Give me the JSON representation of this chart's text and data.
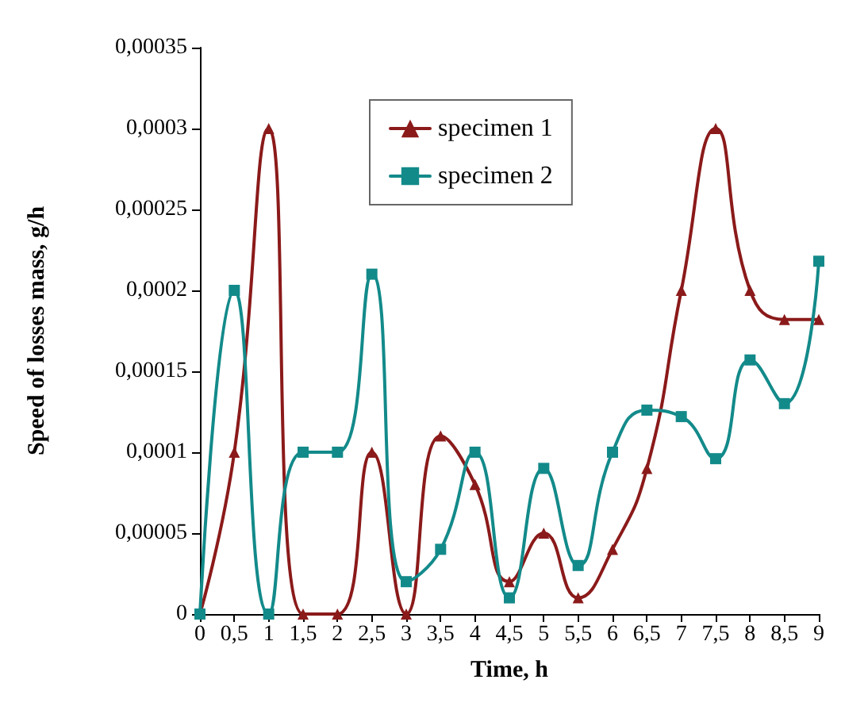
{
  "chart_data": {
    "type": "line",
    "xlabel": "Time, h",
    "ylabel": "Speed of losses mass, g/h",
    "categories": [
      "0",
      "0,5",
      "1",
      "1,5",
      "2",
      "2,5",
      "3",
      "3,5",
      "4",
      "4,5",
      "5",
      "5,5",
      "6",
      "6,5",
      "7",
      "7,5",
      "8",
      "8,5",
      "9"
    ],
    "series": [
      {
        "name": "specimen 1",
        "color": "#8b1a1a",
        "marker": "triangle",
        "values": [
          0,
          0.0001,
          0.0003,
          0,
          0,
          0.0001,
          0,
          0.00011,
          8e-05,
          2e-05,
          5e-05,
          1e-05,
          4e-05,
          9e-05,
          0.0002,
          0.0003,
          0.0002,
          0.000182,
          0.000182
        ]
      },
      {
        "name": "specimen 2",
        "color": "#138a8a",
        "marker": "square",
        "values": [
          0,
          0.0002,
          0,
          0.0001,
          0.0001,
          0.00021,
          2e-05,
          4e-05,
          0.0001,
          1e-05,
          9e-05,
          3e-05,
          0.0001,
          0.000126,
          0.000122,
          9.6e-05,
          0.000157,
          0.00013,
          0.000218
        ]
      }
    ],
    "ylim": [
      0,
      0.00035
    ],
    "yticks": [
      {
        "value": 0,
        "label": "0"
      },
      {
        "value": 5e-05,
        "label": "0,00005"
      },
      {
        "value": 0.0001,
        "label": "0,0001"
      },
      {
        "value": 0.00015,
        "label": "0,00015"
      },
      {
        "value": 0.0002,
        "label": "0,0002"
      },
      {
        "value": 0.00025,
        "label": "0,00025"
      },
      {
        "value": 0.0003,
        "label": "0,0003"
      },
      {
        "value": 0.00035,
        "label": "0,00035"
      }
    ],
    "grid": false,
    "legend": "top",
    "line_style": "solid"
  }
}
